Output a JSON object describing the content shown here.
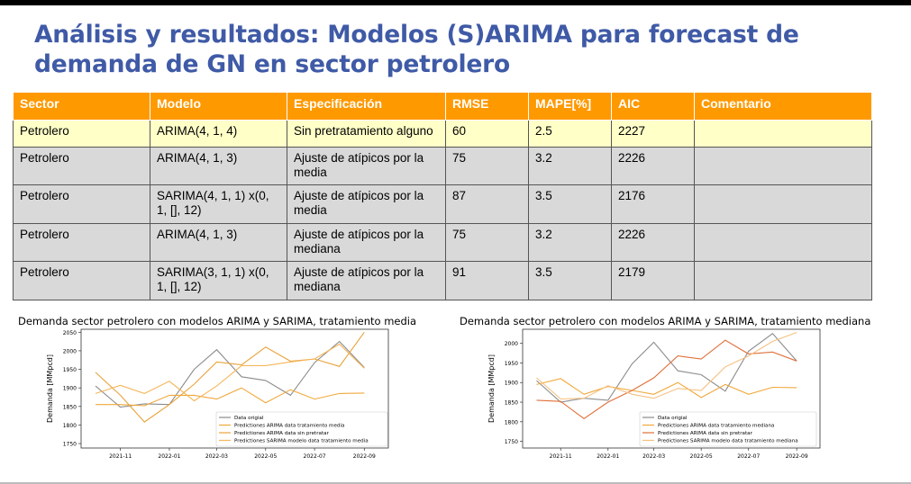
{
  "slide": {
    "title": "Análisis y resultados: Modelos (S)ARIMA para forecast de demanda de GN en sector petrolero"
  },
  "table": {
    "headers": [
      "Sector",
      "Modelo",
      "Especificación",
      "RMSE",
      "MAPE[%]",
      "AIC",
      "Comentario"
    ],
    "rows": [
      [
        "Petrolero",
        "ARIMA(4, 1, 4)",
        "Sin pretratamiento alguno",
        "60",
        "2.5",
        "2227",
        ""
      ],
      [
        "Petrolero",
        "ARIMA(4, 1, 3)",
        "Ajuste de atípicos por la media",
        "75",
        "3.2",
        "2226",
        ""
      ],
      [
        "Petrolero",
        "SARIMA(4, 1, 1) x(0, 1, [], 12)",
        "Ajuste de atípicos por la media",
        "87",
        "3.5",
        "2176",
        ""
      ],
      [
        "Petrolero",
        "ARIMA(4, 1, 3)",
        "Ajuste de atípicos por la mediana",
        "75",
        "3.2",
        "2226",
        ""
      ],
      [
        "Petrolero",
        "SARIMA(3, 1, 1) x(0, 1, [], 12)",
        "Ajuste de atípicos por la mediana",
        "91",
        "3.5",
        "2179",
        ""
      ]
    ]
  },
  "colors": {
    "title": "#3f5aa6",
    "header_bg": "#ff9900",
    "highlight_row": "#ffffc8",
    "gray_row": "#d9d9d9"
  },
  "chart_data": [
    {
      "type": "line",
      "title": "Demanda sector petrolero con modelos ARIMA y SARIMA, tratamiento media",
      "ylabel": "Demanda [MMpcd]",
      "xlabel": "",
      "xlim": [
        "2021-09-13",
        "2022-10-01"
      ],
      "ylim": [
        1738,
        2058
      ],
      "xticks": [
        "2021-11-01",
        "2022-01-01",
        "2022-03-01",
        "2022-05-01",
        "2022-07-01",
        "2022-09-01"
      ],
      "xtick_labels": [
        "2021-11",
        "2022-01",
        "2022-03",
        "2022-05",
        "2022-07",
        "2022-09"
      ],
      "yticks": [
        1750,
        1800,
        1850,
        1900,
        1950,
        2000,
        2050
      ],
      "legend_position": "lower-right",
      "x": [
        "2021-10-01",
        "2021-11-01",
        "2021-12-01",
        "2022-01-01",
        "2022-02-01",
        "2022-03-01",
        "2022-04-01",
        "2022-05-01",
        "2022-06-01",
        "2022-07-01",
        "2022-08-01",
        "2022-09-01"
      ],
      "series": [
        {
          "name": "Data origial",
          "color": "#8c8c8c",
          "values": [
            1905,
            1848,
            1857,
            1855,
            1950,
            2003,
            1930,
            1920,
            1880,
            1968,
            2025,
            1955
          ]
        },
        {
          "name": "Predictiones ARIMA data tratamiento media",
          "color": "#f0a83a",
          "values": [
            1855,
            1855,
            1852,
            1880,
            1880,
            1870,
            1900,
            1860,
            1895,
            1870,
            1885,
            1886
          ]
        },
        {
          "name": "Predictiones ARIMA data sin pretratar",
          "color": "#e9a23a",
          "values": [
            1942,
            1880,
            1808,
            1855,
            1910,
            1970,
            1962,
            2010,
            1972,
            1978,
            1958,
            2050
          ]
        },
        {
          "name": "Predictiones SARIMA modelo data tratamiento media",
          "color": "#f5b55a",
          "values": [
            1885,
            1907,
            1885,
            1918,
            1865,
            1905,
            1960,
            1960,
            1970,
            1978,
            2018,
            1953
          ]
        }
      ]
    },
    {
      "type": "line",
      "title": "Demanda sector petrolero con modelos ARIMA y SARIMA, tratamiento mediana",
      "ylabel": "Demanda [MMpcd]",
      "xlabel": "",
      "xlim": [
        "2021-09-13",
        "2022-10-01"
      ],
      "ylim": [
        1733,
        2036
      ],
      "xticks": [
        "2021-11-01",
        "2022-01-01",
        "2022-03-01",
        "2022-05-01",
        "2022-07-01",
        "2022-09-01"
      ],
      "xtick_labels": [
        "2021-11",
        "2022-01",
        "2022-03",
        "2022-05",
        "2022-07",
        "2022-09"
      ],
      "yticks": [
        1750,
        1800,
        1850,
        1900,
        1950,
        2000
      ],
      "legend_position": "lower-center",
      "x": [
        "2021-10-01",
        "2021-11-01",
        "2021-12-01",
        "2022-01-01",
        "2022-02-01",
        "2022-03-01",
        "2022-04-01",
        "2022-05-01",
        "2022-06-01",
        "2022-07-01",
        "2022-08-01",
        "2022-09-01"
      ],
      "series": [
        {
          "name": "Data origial",
          "color": "#8c8c8c",
          "values": [
            1905,
            1850,
            1860,
            1855,
            1948,
            2003,
            1930,
            1920,
            1878,
            1980,
            2025,
            1955
          ]
        },
        {
          "name": "Predictiones ARIMA data tratamiento mediana",
          "color": "#f0a83a",
          "values": [
            1895,
            1910,
            1870,
            1890,
            1880,
            1870,
            1900,
            1862,
            1895,
            1870,
            1888,
            1887
          ]
        },
        {
          "name": "Predictiones ARIMA data sin pretratar",
          "color": "#e0703a",
          "values": [
            1855,
            1852,
            1808,
            1850,
            1880,
            1912,
            1968,
            1960,
            2008,
            1973,
            1978,
            1955
          ]
        },
        {
          "name": "Predictiones SARIMA modelo data tratamiento mediana",
          "color": "#f5c080",
          "values": [
            1912,
            1858,
            1860,
            1892,
            1870,
            1860,
            1885,
            1880,
            1940,
            1968,
            2005,
            2028
          ]
        }
      ]
    }
  ]
}
